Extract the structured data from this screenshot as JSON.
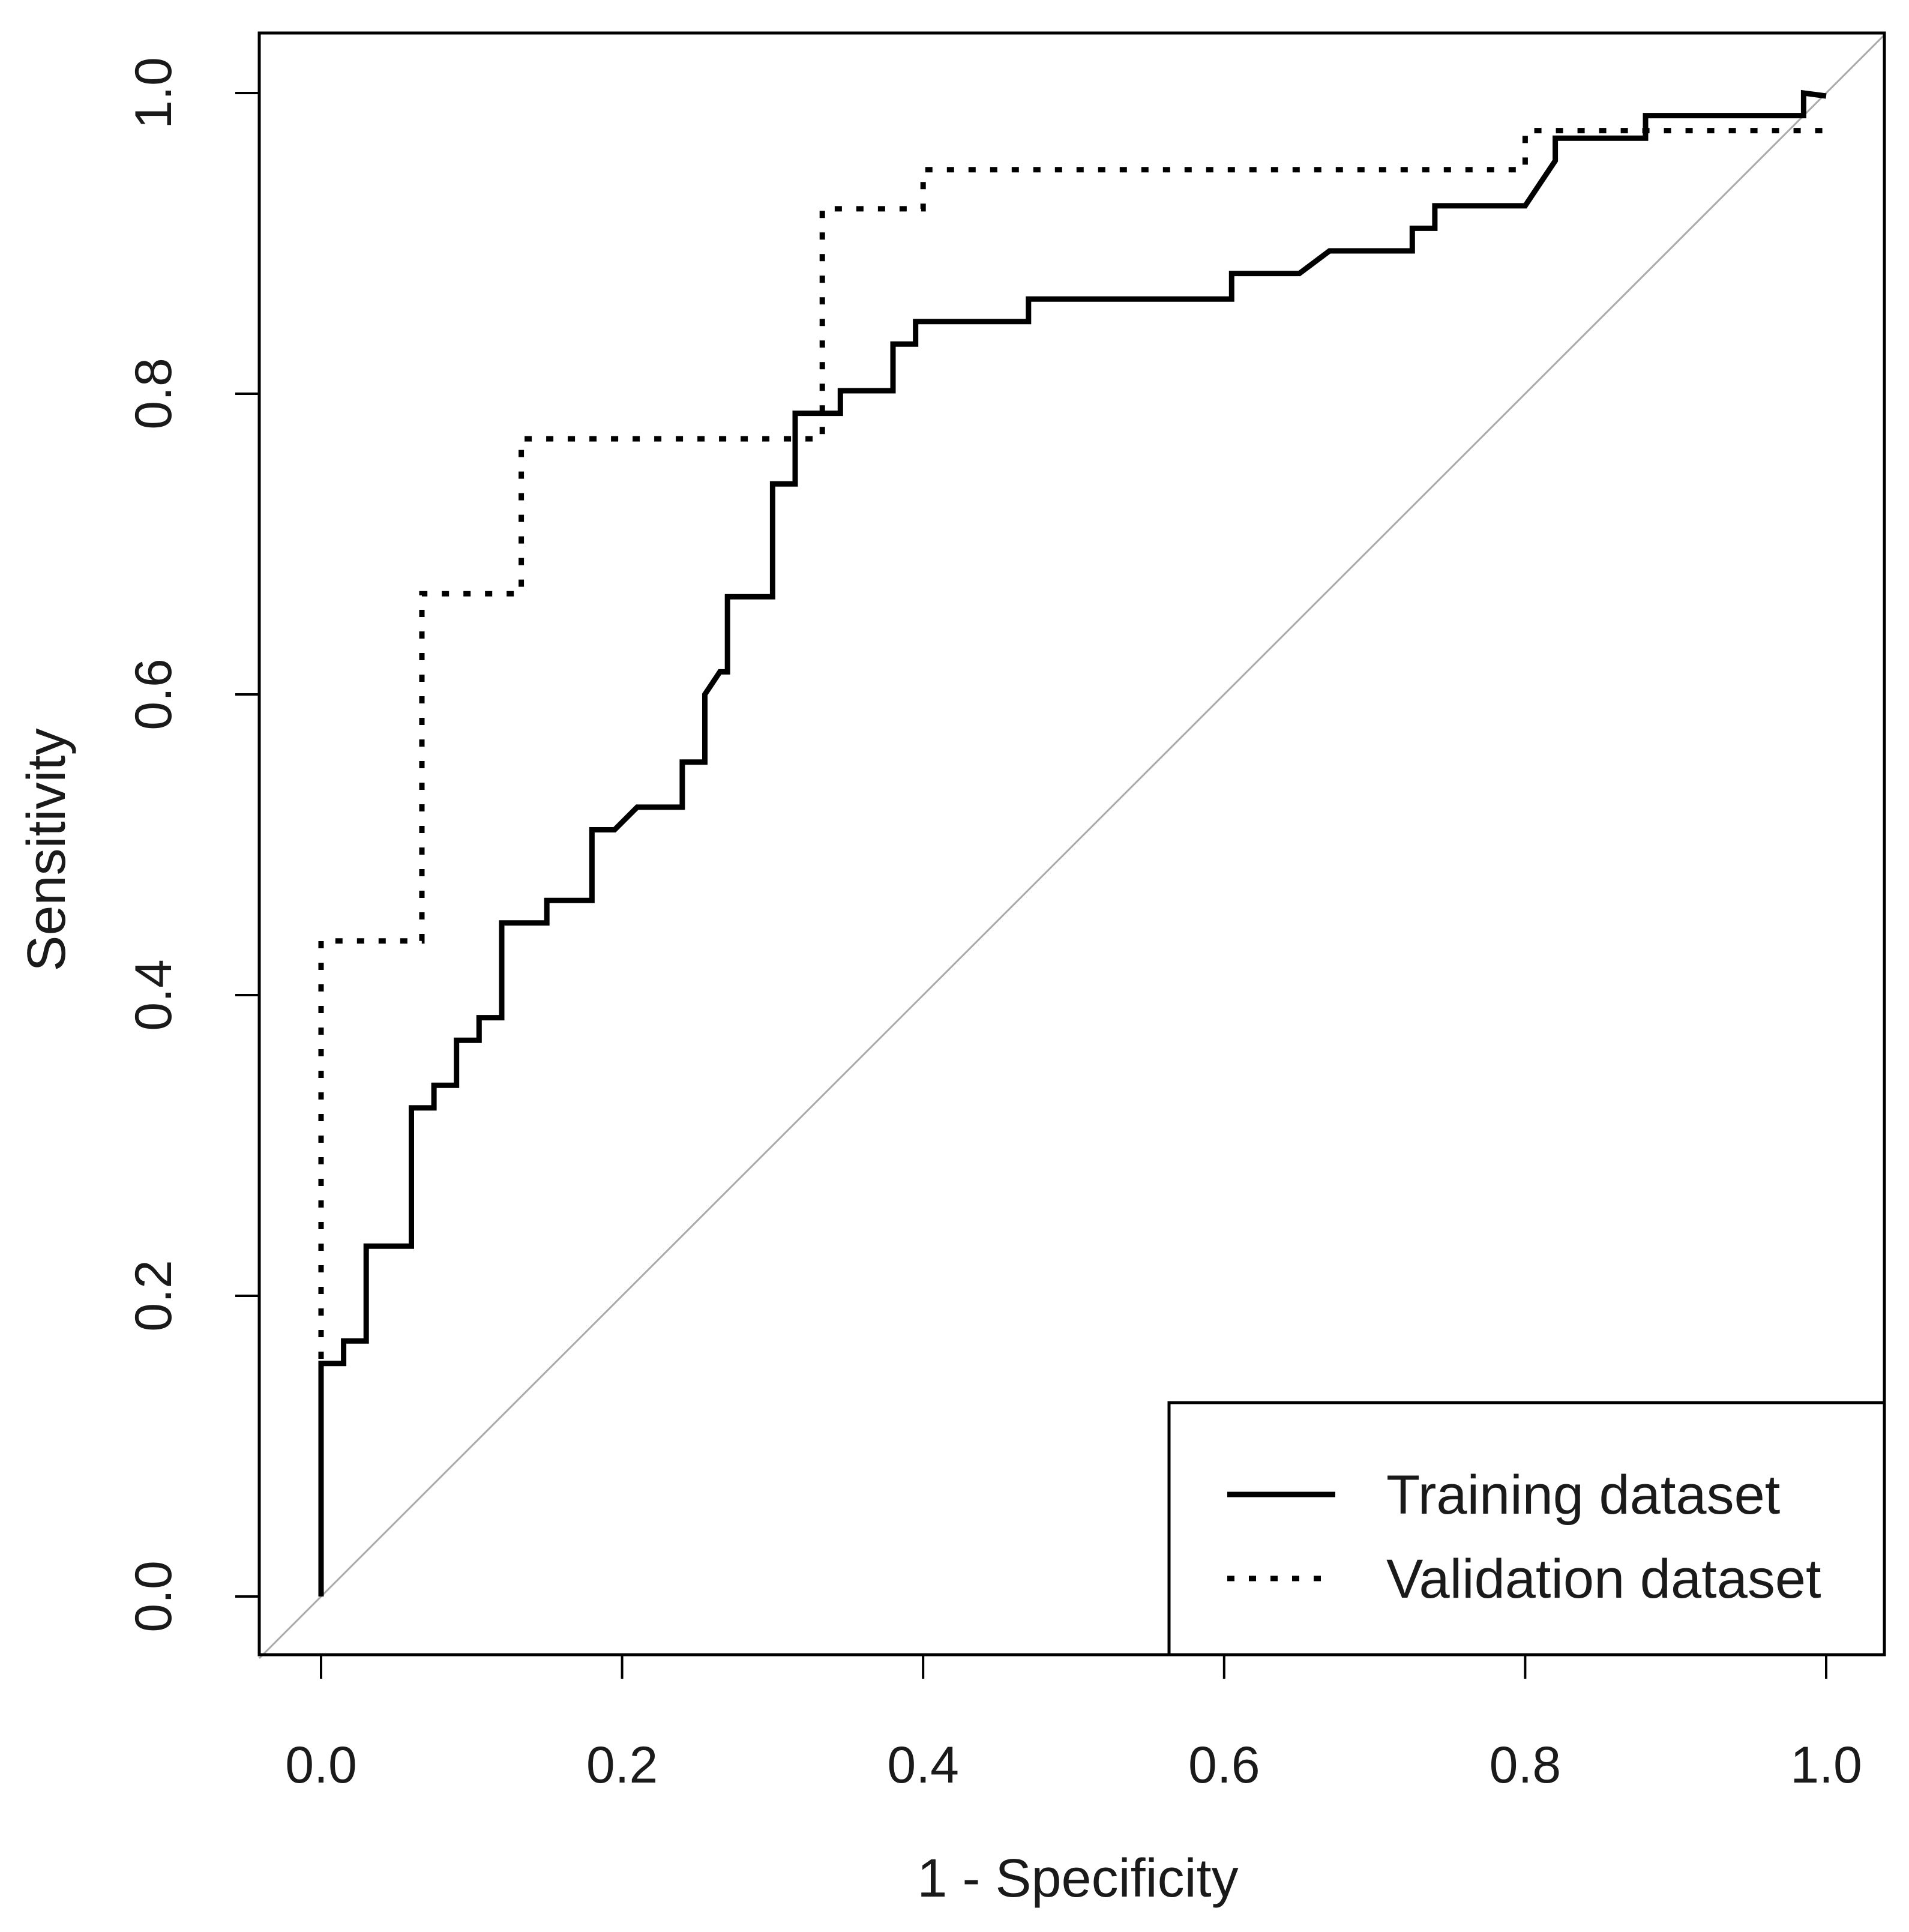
{
  "chart_data": {
    "type": "line",
    "title": "",
    "xlabel": "1 - Specificity",
    "ylabel": "Sensitivity",
    "xlim": [
      0,
      1
    ],
    "ylim": [
      0,
      1
    ],
    "x_ticks": [
      "0.0",
      "0.2",
      "0.4",
      "0.6",
      "0.8",
      "1.0"
    ],
    "y_ticks": [
      "0.0",
      "0.2",
      "0.4",
      "0.6",
      "0.8",
      "1.0"
    ],
    "grid": false,
    "legend_position": "bottom-right",
    "reference_line": {
      "x": [
        0,
        1
      ],
      "y": [
        0,
        1
      ],
      "color": "#aaaaaa"
    },
    "series": [
      {
        "name": "Training dataset",
        "style": "solid",
        "color": "#000000",
        "x": [
          0.0,
          0.0,
          0.0,
          0.015,
          0.015,
          0.03,
          0.03,
          0.06,
          0.06,
          0.075,
          0.075,
          0.09,
          0.09,
          0.105,
          0.105,
          0.12,
          0.12,
          0.15,
          0.15,
          0.18,
          0.18,
          0.195,
          0.21,
          0.24,
          0.24,
          0.255,
          0.255,
          0.265,
          0.27,
          0.27,
          0.3,
          0.3,
          0.315,
          0.315,
          0.345,
          0.345,
          0.38,
          0.38,
          0.395,
          0.395,
          0.47,
          0.47,
          0.605,
          0.605,
          0.65,
          0.67,
          0.725,
          0.725,
          0.74,
          0.74,
          0.8,
          0.81,
          0.82,
          0.82,
          0.88,
          0.88,
          0.985,
          0.985,
          1.0
        ],
        "y": [
          0.0,
          0.155,
          0.155,
          0.155,
          0.17,
          0.17,
          0.233,
          0.233,
          0.325,
          0.325,
          0.34,
          0.34,
          0.37,
          0.37,
          0.385,
          0.385,
          0.448,
          0.448,
          0.463,
          0.463,
          0.51,
          0.51,
          0.525,
          0.525,
          0.555,
          0.555,
          0.6,
          0.615,
          0.615,
          0.665,
          0.665,
          0.74,
          0.74,
          0.787,
          0.787,
          0.802,
          0.802,
          0.833,
          0.833,
          0.848,
          0.848,
          0.863,
          0.863,
          0.88,
          0.88,
          0.895,
          0.895,
          0.91,
          0.91,
          0.925,
          0.925,
          0.94,
          0.955,
          0.97,
          0.97,
          0.985,
          0.985,
          1.0,
          0.998
        ]
      },
      {
        "name": "Validation dataset",
        "style": "dotted",
        "color": "#000000",
        "x": [
          0.0,
          0.0,
          0.0,
          0.0,
          0.067,
          0.067,
          0.133,
          0.133,
          0.333,
          0.333,
          0.4,
          0.4,
          0.8,
          0.8,
          1.0,
          1.0
        ],
        "y": [
          0.0,
          0.158,
          0.158,
          0.436,
          0.436,
          0.667,
          0.667,
          0.77,
          0.77,
          0.923,
          0.923,
          0.949,
          0.949,
          0.975,
          0.975,
          0.97
        ]
      }
    ]
  }
}
